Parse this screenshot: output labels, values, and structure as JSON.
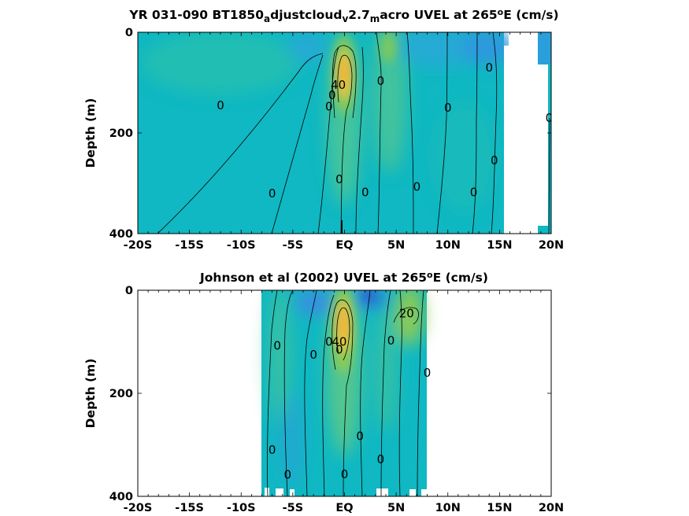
{
  "chart_data": [
    {
      "type": "heatmap",
      "title_parts": [
        {
          "text": "YR 031-090 BT1850"
        },
        {
          "text": "a",
          "sub": true
        },
        {
          "text": "djustcloud"
        },
        {
          "text": "v",
          "sub": true
        },
        {
          "text": "2.7"
        },
        {
          "text": "m",
          "sub": true
        },
        {
          "text": "acro UVEL at 265"
        },
        {
          "text": "o",
          "sup": true
        },
        {
          "text": "E (cm/s)"
        }
      ],
      "ylabel": "Depth (m)",
      "xlim": [
        -20,
        20
      ],
      "ylim": [
        400,
        0
      ],
      "x_ticks": [
        {
          "value": -20,
          "label": "-20S"
        },
        {
          "value": -15,
          "label": "-15S"
        },
        {
          "value": -10,
          "label": "-10S"
        },
        {
          "value": -5,
          "label": "-5S"
        },
        {
          "value": 0,
          "label": "EQ"
        },
        {
          "value": 5,
          "label": "5N"
        },
        {
          "value": 10,
          "label": "10N"
        },
        {
          "value": 15,
          "label": "15N"
        },
        {
          "value": 20,
          "label": "20N"
        }
      ],
      "y_ticks": [
        {
          "value": 0,
          "label": "0"
        },
        {
          "value": 200,
          "label": "200"
        },
        {
          "value": 400,
          "label": "400"
        }
      ],
      "data_extent": {
        "x": [
          -20,
          15.5
        ],
        "y": [
          0,
          400
        ]
      },
      "core": {
        "x": 0.2,
        "depth": 90,
        "max_speed": 45
      },
      "contour_labels": [
        {
          "text": "0",
          "x": -7,
          "depth": 320
        },
        {
          "text": "0",
          "x": -12,
          "depth": 145
        },
        {
          "text": "0",
          "x": -0.5,
          "depth": 292
        },
        {
          "text": "0",
          "x": 2,
          "depth": 318
        },
        {
          "text": "0",
          "x": 7,
          "depth": 307
        },
        {
          "text": "0",
          "x": 3.5,
          "depth": 97
        },
        {
          "text": "0",
          "x": 10,
          "depth": 150
        },
        {
          "text": "0",
          "x": 14,
          "depth": 70
        },
        {
          "text": "0",
          "x": 14.5,
          "depth": 255
        },
        {
          "text": "0",
          "x": 12.5,
          "depth": 318
        },
        {
          "text": "0",
          "x": -1.2,
          "depth": 125
        },
        {
          "text": "0",
          "x": -1.5,
          "depth": 148
        },
        {
          "text": "0",
          "x": 19.8,
          "depth": 170
        },
        {
          "text": "40",
          "x": -0.6,
          "depth": 105
        }
      ]
    },
    {
      "type": "heatmap",
      "title_parts": [
        {
          "text": "Johnson et al (2002) UVEL at 265"
        },
        {
          "text": "o",
          "sup": true
        },
        {
          "text": "E (cm/s)"
        }
      ],
      "ylabel": "Depth (m)",
      "xlim": [
        -20,
        20
      ],
      "ylim": [
        400,
        0
      ],
      "x_ticks": [
        {
          "value": -20,
          "label": "-20S"
        },
        {
          "value": -15,
          "label": "-15S"
        },
        {
          "value": -10,
          "label": "-10S"
        },
        {
          "value": -5,
          "label": "-5S"
        },
        {
          "value": 0,
          "label": "EQ"
        },
        {
          "value": 5,
          "label": "5N"
        },
        {
          "value": 10,
          "label": "10N"
        },
        {
          "value": 15,
          "label": "15N"
        },
        {
          "value": 20,
          "label": "20N"
        }
      ],
      "y_ticks": [
        {
          "value": 0,
          "label": "0"
        },
        {
          "value": 200,
          "label": "200"
        },
        {
          "value": 400,
          "label": "400"
        }
      ],
      "data_extent": {
        "x": [
          -8,
          8
        ],
        "y": [
          0,
          400
        ]
      },
      "core": {
        "x": 0,
        "depth": 70,
        "max_speed": 45
      },
      "contour_labels": [
        {
          "text": "0",
          "x": -6.5,
          "depth": 108
        },
        {
          "text": "0",
          "x": -3,
          "depth": 125
        },
        {
          "text": "0",
          "x": -1.5,
          "depth": 100
        },
        {
          "text": "0",
          "x": -0.5,
          "depth": 115
        },
        {
          "text": "0",
          "x": 4.5,
          "depth": 98
        },
        {
          "text": "0",
          "x": 8,
          "depth": 160
        },
        {
          "text": "0",
          "x": -7,
          "depth": 310
        },
        {
          "text": "0",
          "x": -5.5,
          "depth": 358
        },
        {
          "text": "0",
          "x": 1.5,
          "depth": 283
        },
        {
          "text": "0",
          "x": 3.5,
          "depth": 328
        },
        {
          "text": "0",
          "x": 0,
          "depth": 357
        },
        {
          "text": "40",
          "x": -0.5,
          "depth": 100
        },
        {
          "text": "20",
          "x": 6,
          "depth": 45
        }
      ]
    }
  ],
  "colors": {
    "background": "#0fb8c2",
    "teal_light": "#2fbfa8",
    "teal_green": "#4ac49a",
    "green": "#7ec95e",
    "yellow": "#f5c63b",
    "orange": "#f7ae3a",
    "blue": "#3096e0",
    "dark_blue": "#2a6cd6"
  }
}
